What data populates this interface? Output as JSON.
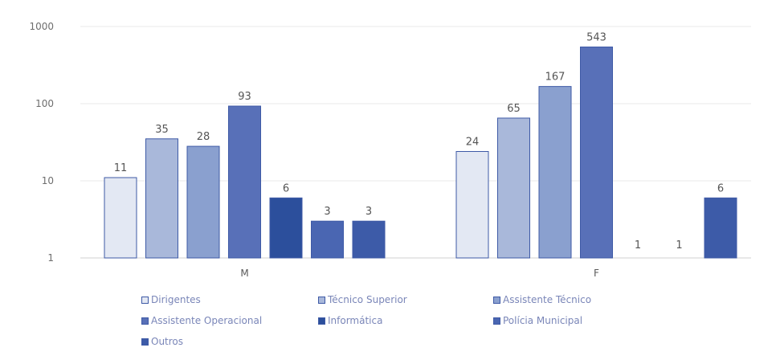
{
  "chart_data": {
    "type": "bar",
    "yscale": "log",
    "ylim": [
      1,
      1000
    ],
    "yticks": [
      "1",
      "10",
      "100",
      "1000"
    ],
    "categories": [
      "M",
      "F"
    ],
    "series": [
      {
        "name": "Dirigentes",
        "color": "#e3e8f3",
        "values": [
          11,
          24
        ]
      },
      {
        "name": "Técnico Superior",
        "color": "#a9b8da",
        "values": [
          35,
          65
        ]
      },
      {
        "name": "Assistente Técnico",
        "color": "#8aa0cf",
        "values": [
          28,
          167
        ]
      },
      {
        "name": "Assistente Operacional",
        "color": "#5870b8",
        "values": [
          93,
          543
        ]
      },
      {
        "name": "Informática",
        "color": "#2c4f9c",
        "values": [
          6,
          1
        ]
      },
      {
        "name": "Polícia Municipal",
        "color": "#4a66b2",
        "values": [
          3,
          1
        ]
      },
      {
        "name": "Outros",
        "color": "#3d5ba8",
        "values": [
          3,
          6
        ]
      }
    ],
    "grid": true,
    "legend_position": "bottom"
  }
}
